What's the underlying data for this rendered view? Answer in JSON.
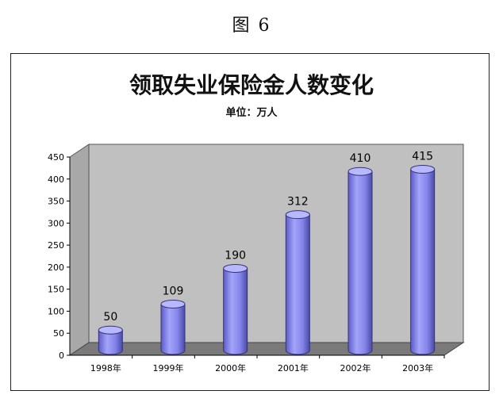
{
  "figure_label": "图 6",
  "chart_data": {
    "type": "bar",
    "title": "领取失业保险金人数变化",
    "subtitle": "单位：万人",
    "categories": [
      "1998年",
      "1999年",
      "2000年",
      "2001年",
      "2002年",
      "2003年"
    ],
    "values": [
      50,
      109,
      190,
      312,
      410,
      415
    ],
    "ylim": [
      0,
      450
    ],
    "yticks": [
      0,
      50,
      100,
      150,
      200,
      250,
      300,
      350,
      400,
      450
    ],
    "grid": false,
    "legend": "none",
    "style": "3d-cylinder",
    "colors": {
      "bar": "#9a9af2",
      "wall": "#c0c0c0",
      "floor": "#7a7a7a"
    }
  }
}
